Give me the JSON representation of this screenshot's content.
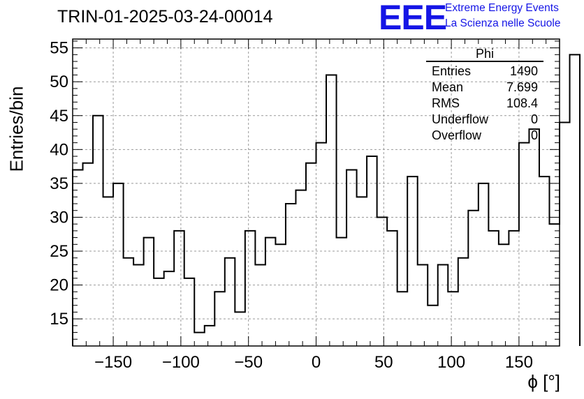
{
  "title": "TRIN-01-2025-03-24-00014",
  "logo": {
    "text": "EEE",
    "line1": "Extreme Energy Events",
    "line2": "La Scienza nelle Scuole",
    "color": "#1515e6"
  },
  "stats": {
    "title": "Phi",
    "rows": [
      {
        "label": "Entries",
        "value": "1490"
      },
      {
        "label": "Mean",
        "value": "7.699"
      },
      {
        "label": "RMS",
        "value": "108.4"
      },
      {
        "label": "Underflow",
        "value": "0"
      },
      {
        "label": "Overflow",
        "value": "0"
      }
    ]
  },
  "chart_data": {
    "type": "bar",
    "histogram": true,
    "title": "TRIN-01-2025-03-24-00014",
    "xlabel": "ϕ [°]",
    "ylabel": "Entries/bin",
    "xlim": [
      -180,
      180
    ],
    "ylim": [
      11,
      56.3
    ],
    "xticks": [
      -150,
      -100,
      -50,
      0,
      50,
      100,
      150
    ],
    "yticks": [
      15,
      20,
      25,
      30,
      35,
      40,
      45,
      50,
      55
    ],
    "grid": true,
    "bin_width": 7.5,
    "bin_edges_start": -180,
    "values": [
      37,
      38,
      45,
      33,
      35,
      24,
      23,
      27,
      21,
      22,
      28,
      21,
      13,
      14,
      19,
      24,
      16,
      28,
      23,
      27,
      26,
      32,
      34,
      38,
      41,
      51,
      27,
      37,
      33,
      39,
      30,
      28,
      19,
      36,
      23,
      17,
      23,
      19,
      24,
      31,
      35,
      28,
      26,
      28,
      41,
      43,
      36,
      29,
      44,
      54
    ]
  }
}
